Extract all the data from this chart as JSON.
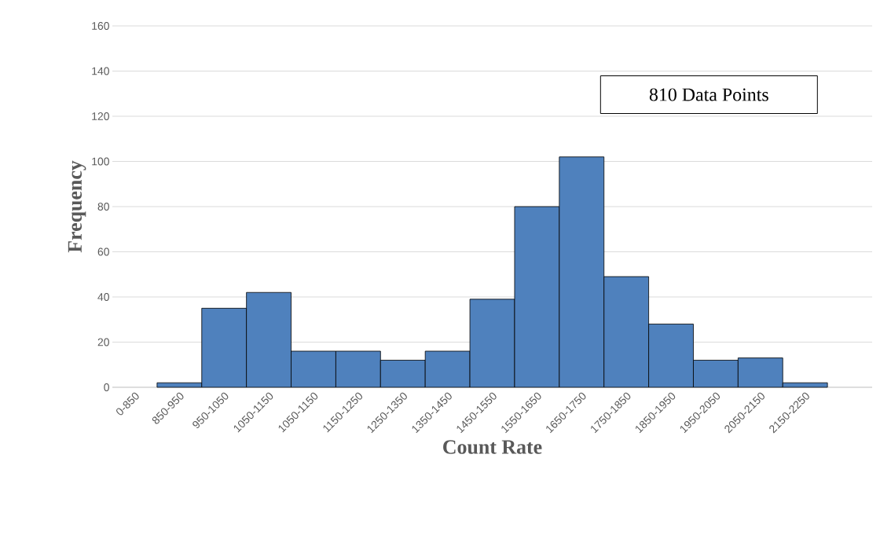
{
  "chart_data": {
    "type": "bar",
    "categories": [
      "0-850",
      "850-950",
      "950-1050",
      "1050-1150",
      "1050-1150",
      "1150-1250",
      "1250-1350",
      "1350-1450",
      "1450-1550",
      "1550-1650",
      "1650-1750",
      "1750-1850",
      "1850-1950",
      "1950-2050",
      "2050-2150",
      "2150-2250"
    ],
    "values": [
      0,
      2,
      35,
      42,
      16,
      16,
      12,
      16,
      39,
      80,
      102,
      49,
      28,
      12,
      13,
      2
    ],
    "color": "#4f81bd",
    "ylim": [
      0,
      160
    ],
    "yticks": [
      0,
      20,
      40,
      60,
      80,
      100,
      120,
      140,
      160
    ],
    "grid": "y",
    "xlabel": "Count Rate",
    "ylabel": "Frequency",
    "annotations": [
      "810 Data Points"
    ]
  }
}
